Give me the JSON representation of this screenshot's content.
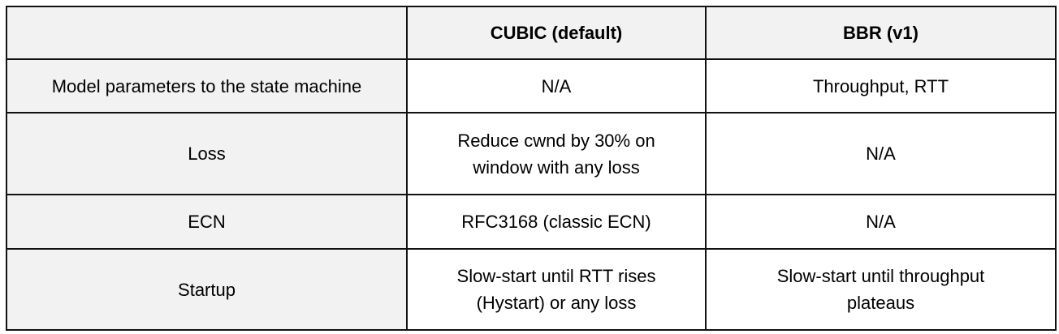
{
  "header": {
    "corner": "",
    "columns": [
      "CUBIC (default)",
      "BBR (v1)"
    ]
  },
  "rows": [
    {
      "label": "Model parameters to the state machine",
      "cubic": "N/A",
      "bbr": "Throughput, RTT"
    },
    {
      "label": "Loss",
      "cubic": "Reduce cwnd by 30% on window with any loss",
      "bbr": "N/A"
    },
    {
      "label": "ECN",
      "cubic": "RFC3168 (classic ECN)",
      "bbr": "N/A"
    },
    {
      "label": "Startup",
      "cubic": "Slow-start until RTT rises (Hystart) or any loss",
      "bbr": "Slow-start until throughput plateaus"
    }
  ]
}
